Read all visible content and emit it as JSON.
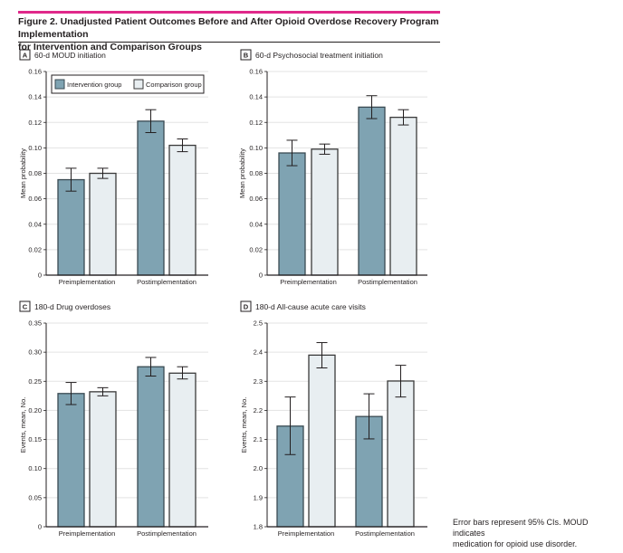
{
  "figure": {
    "title_line1": "Figure 2. Unadjusted Patient Outcomes Before and After Opioid Overdose Recovery Program Implementation",
    "title_line2": "for Intervention and Comparison Groups",
    "footnote_line1": "Error bars represent 95% CIs. MOUD indicates",
    "footnote_line2": "medication for opioid use disorder.",
    "accent_color": "#e0288a"
  },
  "legend": {
    "items": [
      {
        "label": "Intervention group",
        "color": "#7fa3b2"
      },
      {
        "label": "Comparison group",
        "color": "#e8eef1"
      }
    ]
  },
  "chart_data": [
    {
      "type": "bar",
      "panel": "A",
      "title": "60-d MOUD initiation",
      "ylabel": "Mean probability",
      "xlabel": "",
      "categories": [
        "Preimplementation",
        "Postimplementation"
      ],
      "ylim": [
        0,
        0.16
      ],
      "yticks": [
        0,
        0.02,
        0.04,
        0.06,
        0.08,
        0.1,
        0.12,
        0.14,
        0.16
      ],
      "ytick_labels": [
        "0",
        "0.02",
        "0.04",
        "0.06",
        "0.08",
        "0.10",
        "0.12",
        "0.14",
        "0.16"
      ],
      "grid": true,
      "legend": "top",
      "series": [
        {
          "name": "Intervention group",
          "values": [
            0.075,
            0.121
          ],
          "ci_low": [
            0.066,
            0.112
          ],
          "ci_high": [
            0.084,
            0.13
          ]
        },
        {
          "name": "Comparison group",
          "values": [
            0.08,
            0.102
          ],
          "ci_low": [
            0.076,
            0.097
          ],
          "ci_high": [
            0.084,
            0.107
          ]
        }
      ]
    },
    {
      "type": "bar",
      "panel": "B",
      "title": "60-d Psychosocial treatment initiation",
      "ylabel": "Mean probability",
      "xlabel": "",
      "categories": [
        "Preimplementation",
        "Postimplementation"
      ],
      "ylim": [
        0,
        0.16
      ],
      "yticks": [
        0,
        0.02,
        0.04,
        0.06,
        0.08,
        0.1,
        0.12,
        0.14,
        0.16
      ],
      "ytick_labels": [
        "0",
        "0.02",
        "0.04",
        "0.06",
        "0.08",
        "0.10",
        "0.12",
        "0.14",
        "0.16"
      ],
      "grid": true,
      "series": [
        {
          "name": "Intervention group",
          "values": [
            0.096,
            0.132
          ],
          "ci_low": [
            0.086,
            0.123
          ],
          "ci_high": [
            0.106,
            0.141
          ]
        },
        {
          "name": "Comparison group",
          "values": [
            0.099,
            0.124
          ],
          "ci_low": [
            0.095,
            0.118
          ],
          "ci_high": [
            0.103,
            0.13
          ]
        }
      ]
    },
    {
      "type": "bar",
      "panel": "C",
      "title": "180-d Drug overdoses",
      "ylabel": "Events, mean, No.",
      "xlabel": "",
      "categories": [
        "Preimplementation",
        "Postimplementation"
      ],
      "ylim": [
        0,
        0.35
      ],
      "yticks": [
        0,
        0.05,
        0.1,
        0.15,
        0.2,
        0.25,
        0.3,
        0.35
      ],
      "ytick_labels": [
        "0",
        "0.05",
        "0.10",
        "0.15",
        "0.20",
        "0.25",
        "0.30",
        "0.35"
      ],
      "grid": true,
      "series": [
        {
          "name": "Intervention group",
          "values": [
            0.229,
            0.275
          ],
          "ci_low": [
            0.21,
            0.259
          ],
          "ci_high": [
            0.248,
            0.291
          ]
        },
        {
          "name": "Comparison group",
          "values": [
            0.232,
            0.264
          ],
          "ci_low": [
            0.225,
            0.254
          ],
          "ci_high": [
            0.239,
            0.275
          ]
        }
      ]
    },
    {
      "type": "bar",
      "panel": "D",
      "title": "180-d All-cause acute care visits",
      "ylabel": "Events, mean, No.",
      "xlabel": "",
      "categories": [
        "Preimplementation",
        "Postimplementation"
      ],
      "ylim": [
        1.8,
        2.5
      ],
      "yticks": [
        1.8,
        1.9,
        2.0,
        2.1,
        2.2,
        2.3,
        2.4,
        2.5
      ],
      "ytick_labels": [
        "1.8",
        "1.9",
        "2.0",
        "2.1",
        "2.2",
        "2.3",
        "2.4",
        "2.5"
      ],
      "grid": true,
      "series": [
        {
          "name": "Intervention group",
          "values": [
            2.146,
            2.179
          ],
          "ci_low": [
            2.048,
            2.102
          ],
          "ci_high": [
            2.246,
            2.257
          ]
        },
        {
          "name": "Comparison group",
          "values": [
            2.39,
            2.301
          ],
          "ci_low": [
            2.346,
            2.246
          ],
          "ci_high": [
            2.433,
            2.355
          ]
        }
      ]
    }
  ]
}
